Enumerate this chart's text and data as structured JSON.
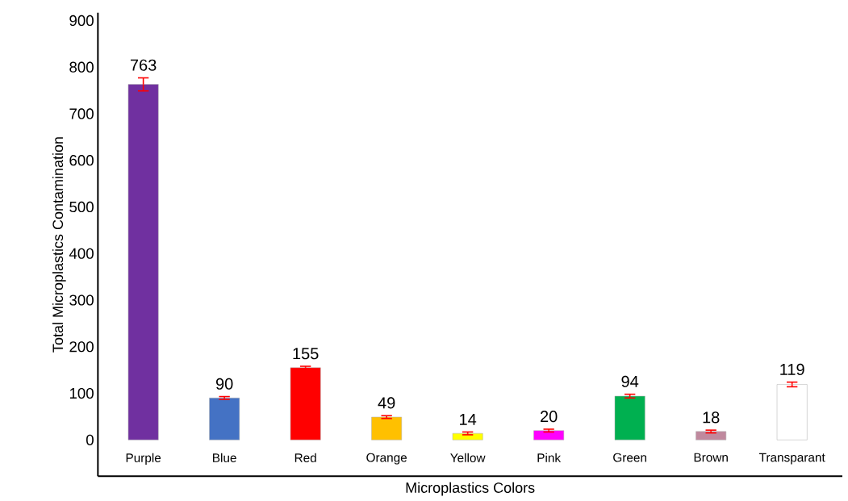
{
  "chart_data": {
    "type": "bar",
    "xlabel": "Microplastics Colors",
    "ylabel": "Total Microplastics Contamination",
    "categories": [
      "Purple",
      "Blue",
      "Red",
      "Orange",
      "Yellow",
      "Pink",
      "Green",
      "Brown",
      "Transparant"
    ],
    "values": [
      763,
      90,
      155,
      49,
      14,
      20,
      94,
      18,
      119
    ],
    "errors": [
      14,
      3,
      3,
      3,
      3,
      3,
      4,
      3,
      5
    ],
    "colors": [
      "#7030a0",
      "#4472c4",
      "#ff0000",
      "#ffc000",
      "#ffff00",
      "#ff00ff",
      "#00b050",
      "#c0899e",
      "#ffffff"
    ],
    "data_labels": true,
    "ylim": [
      -78,
      917
    ],
    "yticks": [
      0,
      100,
      200,
      300,
      400,
      500,
      600,
      700,
      800,
      900
    ],
    "grid": false
  }
}
